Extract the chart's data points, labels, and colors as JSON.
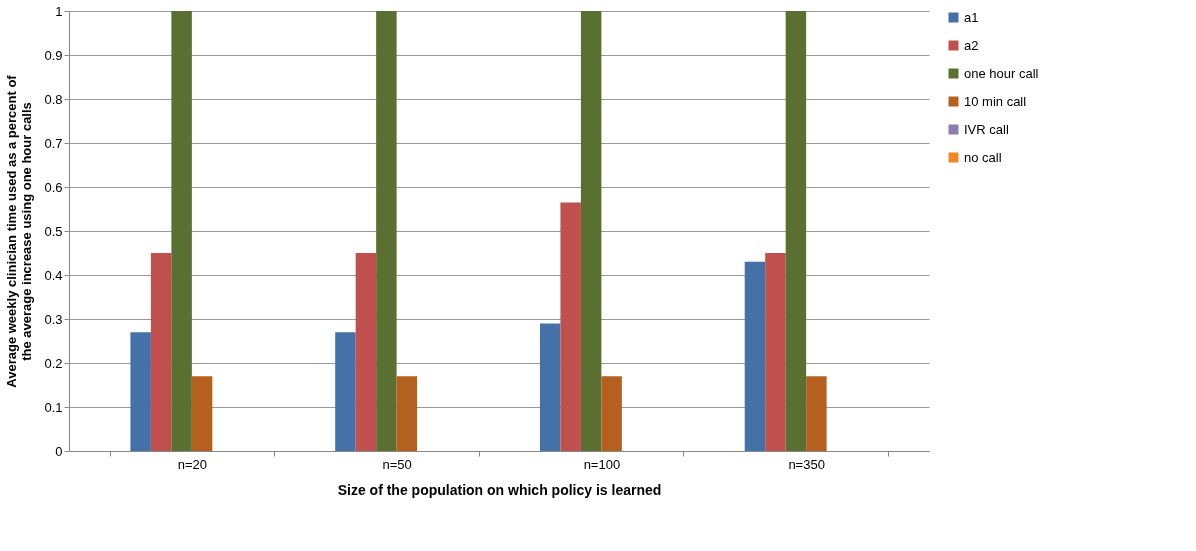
{
  "chart_data": {
    "type": "bar",
    "xlabel": "Size of the population on which policy is learned",
    "ylabel": "Average weekly clinician time used as a percent of the average increase using one hour calls",
    "categories": [
      "n=20",
      "n=50",
      "n=100",
      "n=350"
    ],
    "series": [
      {
        "name": "a1",
        "color": "#4472a8",
        "values": [
          0.27,
          0.27,
          0.29,
          0.43
        ]
      },
      {
        "name": "a2",
        "color": "#c0504d",
        "values": [
          0.45,
          0.45,
          0.565,
          0.45
        ]
      },
      {
        "name": "one hour call",
        "color": "#5a7030",
        "values": [
          1,
          1,
          1,
          1
        ]
      },
      {
        "name": "10 min call",
        "color": "#b5601f",
        "values": [
          0.17,
          0.17,
          0.17,
          0.17
        ]
      },
      {
        "name": "IVR call",
        "color": "#8e7cb0",
        "values": [
          0,
          0,
          0,
          0
        ]
      },
      {
        "name": "no call",
        "color": "#f0862a",
        "values": [
          0,
          0,
          0,
          0
        ]
      }
    ],
    "ylim": [
      0,
      1
    ],
    "yticks": [
      0,
      0.1,
      0.2,
      0.3,
      0.4,
      0.5,
      0.6,
      0.7,
      0.8,
      0.9,
      1
    ],
    "grid": "y",
    "legend": "right"
  }
}
